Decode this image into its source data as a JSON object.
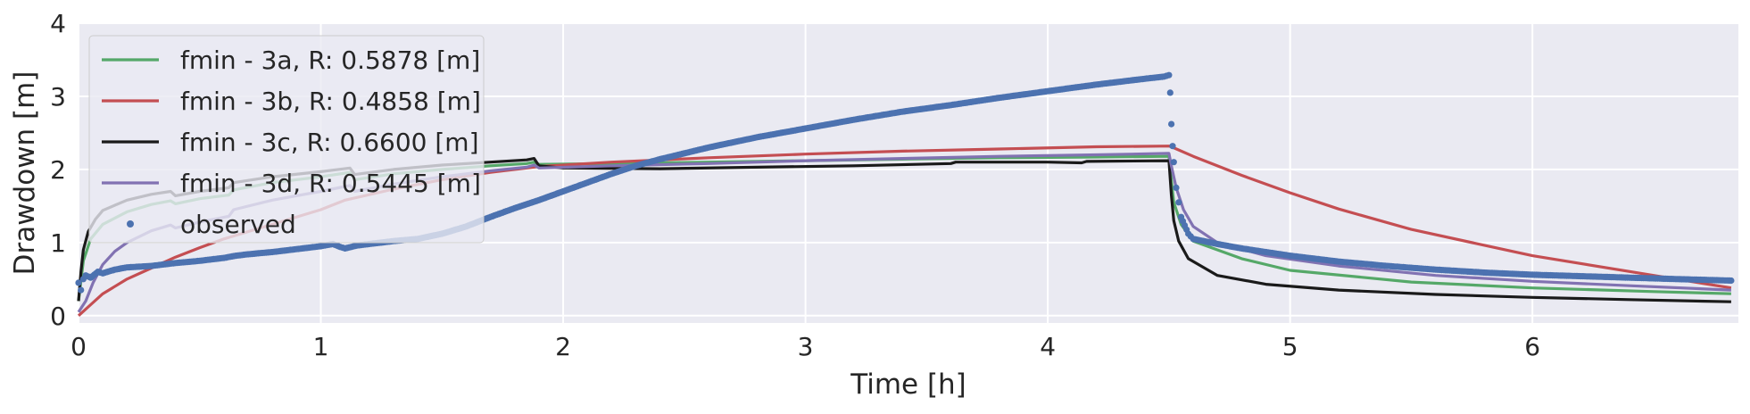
{
  "chart_data": {
    "type": "line",
    "title": "",
    "xlabel": "Time [h]",
    "ylabel": "Drawdown [m]",
    "xlim": [
      0,
      6.85
    ],
    "ylim": [
      -0.1,
      4.0
    ],
    "xticks": [
      0,
      1,
      2,
      3,
      4,
      5,
      6
    ],
    "yticks": [
      0,
      1,
      2,
      3,
      4
    ],
    "grid": true,
    "legend_position": "top-left",
    "series": [
      {
        "name": "fmin - 3a, R: 0.5878 [m]",
        "color": "#55a868",
        "kind": "line",
        "x": [
          0,
          0.02,
          0.05,
          0.1,
          0.2,
          0.3,
          0.38,
          0.4,
          0.5,
          0.62,
          0.64,
          0.8,
          1.0,
          1.12,
          1.14,
          1.3,
          1.5,
          1.7,
          1.85,
          1.88,
          1.9,
          2.2,
          2.6,
          3.0,
          3.4,
          3.8,
          4.2,
          4.5,
          4.51,
          4.52,
          4.55,
          4.6,
          4.8,
          5.0,
          5.5,
          6.0,
          6.5,
          6.82
        ],
        "y": [
          0.2,
          0.75,
          1.05,
          1.25,
          1.42,
          1.52,
          1.57,
          1.53,
          1.6,
          1.65,
          1.72,
          1.82,
          1.9,
          1.96,
          1.86,
          1.94,
          2.0,
          2.05,
          2.08,
          2.1,
          2.07,
          2.08,
          2.1,
          2.12,
          2.14,
          2.16,
          2.17,
          2.18,
          1.85,
          1.55,
          1.25,
          1.02,
          0.78,
          0.62,
          0.46,
          0.38,
          0.33,
          0.3
        ]
      },
      {
        "name": "fmin - 3b, R: 0.4858 [m]",
        "color": "#c44e52",
        "kind": "line",
        "x": [
          0,
          0.05,
          0.1,
          0.2,
          0.3,
          0.4,
          0.5,
          0.6,
          0.8,
          1.0,
          1.1,
          1.3,
          1.5,
          1.7,
          1.9,
          2.2,
          2.6,
          3.0,
          3.4,
          3.8,
          4.2,
          4.5,
          4.51,
          4.6,
          4.8,
          5.0,
          5.2,
          5.5,
          6.0,
          6.5,
          6.82
        ],
        "y": [
          0.0,
          0.15,
          0.3,
          0.5,
          0.65,
          0.8,
          0.93,
          1.05,
          1.25,
          1.45,
          1.58,
          1.73,
          1.86,
          1.96,
          2.04,
          2.1,
          2.16,
          2.21,
          2.25,
          2.28,
          2.31,
          2.32,
          2.31,
          2.18,
          1.92,
          1.68,
          1.46,
          1.18,
          0.82,
          0.55,
          0.38
        ]
      },
      {
        "name": "fmin - 3c, R: 0.6600 [m]",
        "color": "#1a1a1a",
        "kind": "line",
        "x": [
          0,
          0.01,
          0.02,
          0.04,
          0.07,
          0.1,
          0.2,
          0.3,
          0.38,
          0.4,
          0.5,
          0.62,
          0.64,
          0.8,
          1.0,
          1.12,
          1.14,
          1.3,
          1.5,
          1.7,
          1.85,
          1.88,
          1.9,
          2.0,
          2.4,
          2.8,
          3.2,
          3.6,
          3.62,
          4.0,
          4.14,
          4.16,
          4.5,
          4.51,
          4.52,
          4.54,
          4.58,
          4.7,
          4.9,
          5.2,
          5.6,
          6.0,
          6.4,
          6.82
        ],
        "y": [
          0.2,
          0.6,
          0.9,
          1.15,
          1.32,
          1.44,
          1.58,
          1.66,
          1.7,
          1.64,
          1.7,
          1.75,
          1.82,
          1.9,
          1.97,
          2.02,
          1.93,
          2.0,
          2.06,
          2.1,
          2.13,
          2.15,
          2.05,
          2.02,
          2.01,
          2.03,
          2.05,
          2.08,
          2.1,
          2.1,
          2.09,
          2.11,
          2.12,
          1.65,
          1.3,
          1.02,
          0.78,
          0.55,
          0.43,
          0.35,
          0.29,
          0.25,
          0.22,
          0.19
        ]
      },
      {
        "name": "fmin - 3d, R: 0.5445 [m]",
        "color": "#8172b2",
        "kind": "line",
        "x": [
          0,
          0.03,
          0.06,
          0.1,
          0.15,
          0.2,
          0.3,
          0.38,
          0.4,
          0.5,
          0.62,
          0.64,
          0.8,
          1.0,
          1.12,
          1.14,
          1.3,
          1.5,
          1.7,
          1.85,
          1.88,
          1.9,
          2.2,
          2.6,
          3.0,
          3.4,
          3.8,
          4.2,
          4.5,
          4.51,
          4.53,
          4.56,
          4.6,
          4.7,
          4.9,
          5.2,
          5.6,
          6.0,
          6.4,
          6.82
        ],
        "y": [
          0.05,
          0.2,
          0.45,
          0.7,
          0.88,
          1.0,
          1.16,
          1.24,
          1.2,
          1.28,
          1.36,
          1.45,
          1.58,
          1.7,
          1.78,
          1.7,
          1.8,
          1.9,
          1.98,
          2.03,
          2.06,
          2.02,
          2.05,
          2.08,
          2.12,
          2.15,
          2.18,
          2.2,
          2.22,
          2.05,
          1.75,
          1.45,
          1.22,
          1.0,
          0.82,
          0.68,
          0.55,
          0.47,
          0.41,
          0.35
        ]
      },
      {
        "name": "observed",
        "color": "#4c72b0",
        "kind": "scatter",
        "x": [
          0,
          0.01,
          0.02,
          0.03,
          0.05,
          0.08,
          0.1,
          0.15,
          0.2,
          0.3,
          0.4,
          0.5,
          0.6,
          0.65,
          0.7,
          0.8,
          0.9,
          1.0,
          1.05,
          1.08,
          1.1,
          1.15,
          1.2,
          1.3,
          1.4,
          1.5,
          1.6,
          1.7,
          1.8,
          1.9,
          2.0,
          2.1,
          2.2,
          2.3,
          2.4,
          2.5,
          2.6,
          2.8,
          3.0,
          3.2,
          3.4,
          3.6,
          3.8,
          4.0,
          4.2,
          4.3,
          4.4,
          4.48,
          4.49,
          4.5,
          4.505,
          4.51,
          4.515,
          4.52,
          4.53,
          4.55,
          4.58,
          4.6,
          4.7,
          4.8,
          5.0,
          5.2,
          5.4,
          5.6,
          5.8,
          6.0,
          6.2,
          6.4,
          6.6,
          6.82
        ],
        "y": [
          0.45,
          0.35,
          0.5,
          0.55,
          0.52,
          0.6,
          0.58,
          0.63,
          0.66,
          0.68,
          0.72,
          0.75,
          0.79,
          0.82,
          0.84,
          0.87,
          0.91,
          0.95,
          0.98,
          0.94,
          0.92,
          0.96,
          0.98,
          1.02,
          1.05,
          1.12,
          1.22,
          1.35,
          1.47,
          1.58,
          1.7,
          1.82,
          1.94,
          2.05,
          2.14,
          2.22,
          2.3,
          2.44,
          2.56,
          2.68,
          2.79,
          2.88,
          2.98,
          3.07,
          3.16,
          3.2,
          3.24,
          3.27,
          3.28,
          3.29,
          3.05,
          2.62,
          2.32,
          2.1,
          1.75,
          1.35,
          1.12,
          1.05,
          0.98,
          0.92,
          0.82,
          0.74,
          0.68,
          0.63,
          0.59,
          0.56,
          0.54,
          0.52,
          0.5,
          0.48
        ]
      }
    ]
  }
}
